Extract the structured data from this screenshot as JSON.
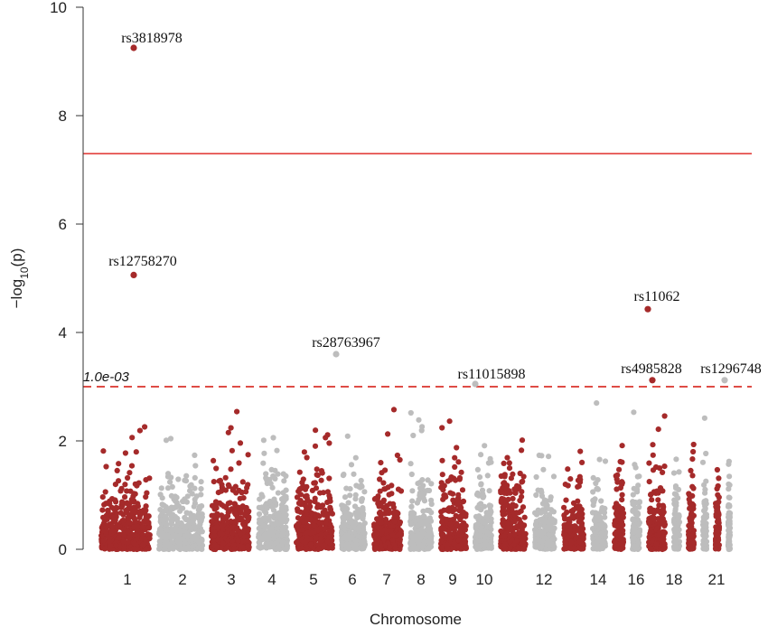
{
  "chart_data": {
    "type": "scatter",
    "plot_kind": "manhattan",
    "xlabel": "Chromosome",
    "ylabel_parts": {
      "pre": "−log",
      "sub": "10",
      "post": "(p)"
    },
    "ylim": [
      0,
      10
    ],
    "yticks": [
      "0",
      "2",
      "4",
      "6",
      "8",
      "10"
    ],
    "chromosomes": [
      "1",
      "2",
      "3",
      "4",
      "5",
      "6",
      "7",
      "8",
      "9",
      "10",
      "11",
      "12",
      "13",
      "14",
      "15",
      "16",
      "17",
      "18",
      "19",
      "20",
      "21",
      "22"
    ],
    "x_tick_labels": [
      {
        "chrom": "1",
        "text": "1"
      },
      {
        "chrom": "2",
        "text": "2"
      },
      {
        "chrom": "3",
        "text": "3"
      },
      {
        "chrom": "4",
        "text": "4"
      },
      {
        "chrom": "5",
        "text": "5"
      },
      {
        "chrom": "6",
        "text": "6"
      },
      {
        "chrom": "7",
        "text": "7"
      },
      {
        "chrom": "8",
        "text": "8"
      },
      {
        "chrom": "9",
        "text": "9"
      },
      {
        "chrom": "10",
        "text": "10"
      },
      {
        "chrom": "12",
        "text": "12"
      },
      {
        "chrom": "14",
        "text": "14"
      },
      {
        "chrom": "16",
        "text": "16"
      },
      {
        "chrom": "18",
        "text": "18"
      },
      {
        "chrom": "21",
        "text": "21"
      }
    ],
    "genome_wide_line": {
      "y": 7.3,
      "color": "#e0312d"
    },
    "suggestive_line": {
      "y": 3.0,
      "label": "1.0e-03",
      "color": "#d9332c",
      "style": "dashed"
    },
    "colors": {
      "odd": "#a52a2a",
      "even": "#bdbdbd"
    },
    "labeled_snps": [
      {
        "name": "rs3818978",
        "chrom": "1",
        "y": 9.25
      },
      {
        "name": "rs12758270",
        "chrom": "1",
        "y": 5.06
      },
      {
        "name": "rs28763967",
        "chrom": "6",
        "y": 3.6
      },
      {
        "name": "rs11015898",
        "chrom": "10",
        "y": 3.05
      },
      {
        "name": "rs11062",
        "chrom": "17",
        "y": 4.43
      },
      {
        "name": "rs4985828",
        "chrom": "17",
        "y": 3.12
      },
      {
        "name": "rs1296748",
        "chrom": "22",
        "y": 3.12
      }
    ]
  }
}
